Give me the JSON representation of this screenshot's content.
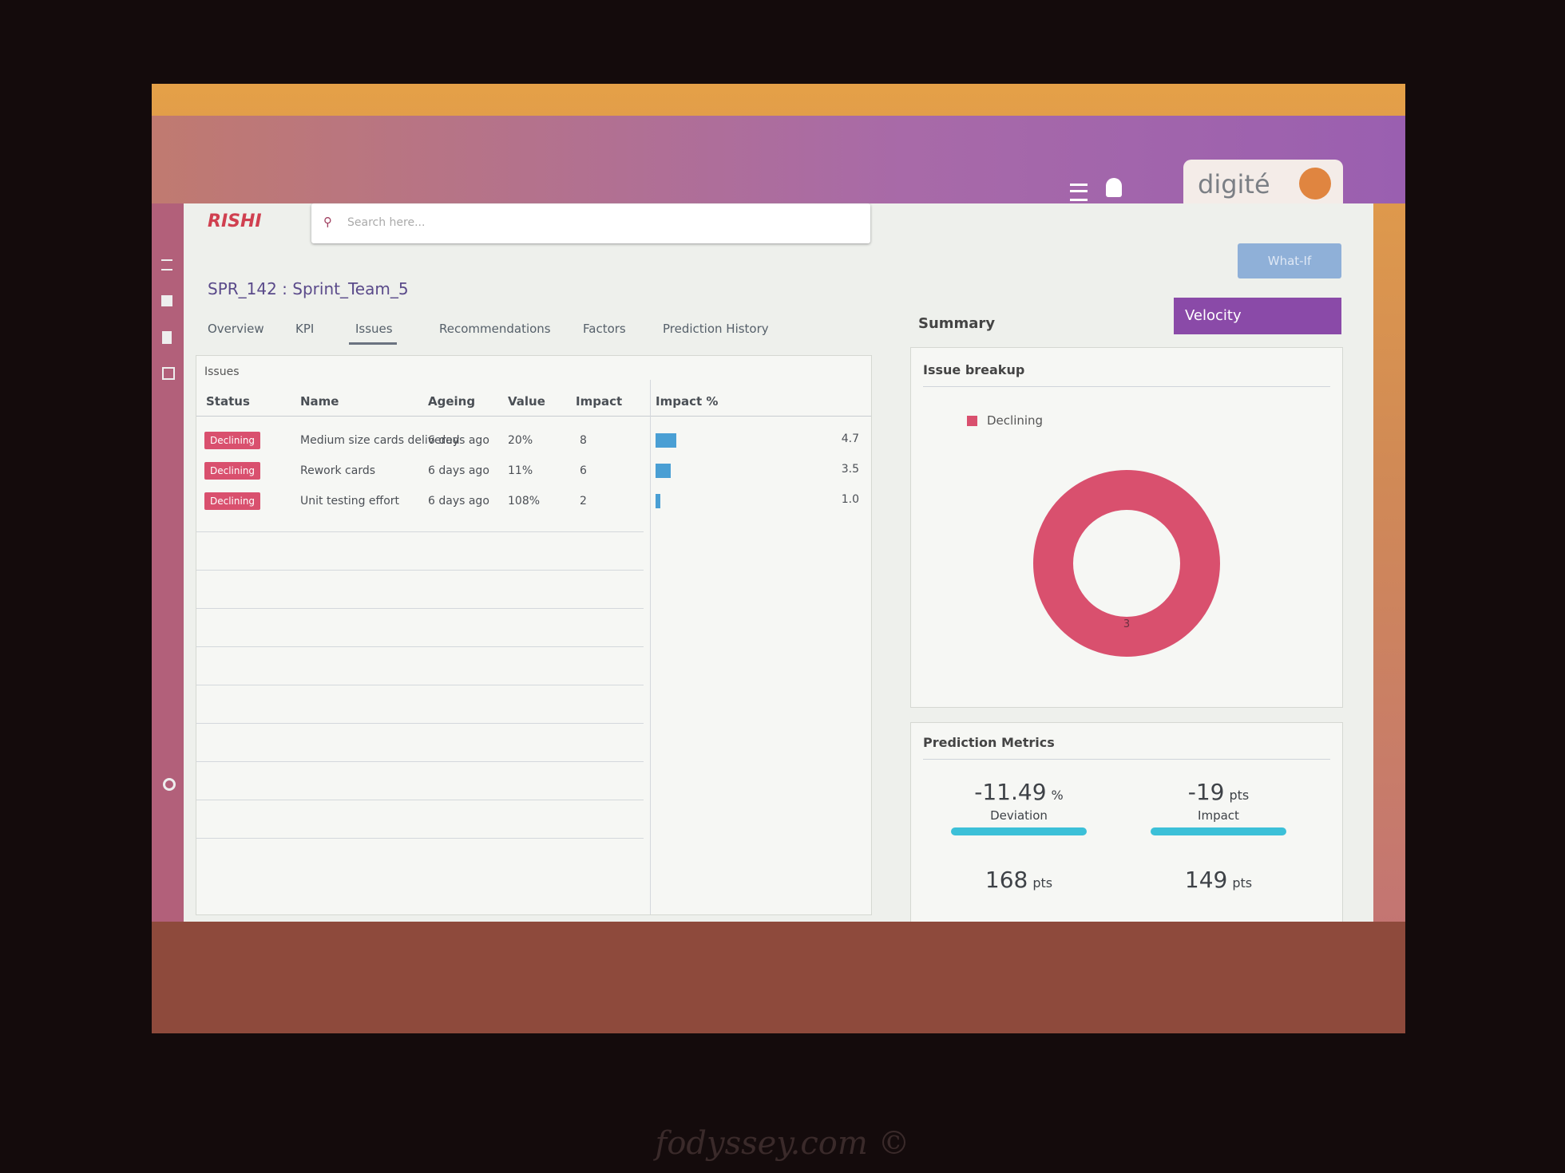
{
  "header": {
    "logo": "RISHI",
    "search_placeholder": "Search here...",
    "brand": "digité",
    "what_if": "What-If",
    "metric_select": "Velocity"
  },
  "breadcrumb": "SPR_142 : Sprint_Team_5",
  "tabs": [
    "Overview",
    "KPI",
    "Issues",
    "Recommendations",
    "Factors",
    "Prediction History"
  ],
  "active_tab": 2,
  "issues": {
    "title": "Issues",
    "columns": [
      "Status",
      "Name",
      "Ageing",
      "Value",
      "Impact",
      "Impact %"
    ],
    "rows": [
      {
        "status": "Declining",
        "name": "Medium size cards delivered",
        "ageing": "6 days ago",
        "value": "20%",
        "impact": 8,
        "impact_pct": {
          "value": 4.7,
          "label": "4.7"
        }
      },
      {
        "status": "Declining",
        "name": "Rework cards",
        "ageing": "6 days ago",
        "value": "11%",
        "impact": 6,
        "impact_pct": {
          "value": 3.5,
          "label": "3.5"
        }
      },
      {
        "status": "Declining",
        "name": "Unit testing effort",
        "ageing": "6 days ago",
        "value": "108%",
        "impact": 2,
        "impact_pct": {
          "value": 1,
          "label": "1.0"
        }
      }
    ]
  },
  "summary": {
    "title": "Summary",
    "issue_breakup": {
      "title": "Issue breakup",
      "legend": "Declining",
      "color": "#d9506e",
      "count": 3
    },
    "prediction_metrics": {
      "title": "Prediction Metrics",
      "items": [
        {
          "value": "-11.49",
          "unit": "%",
          "label": "Deviation"
        },
        {
          "value": "-19",
          "unit": "pts",
          "label": "Impact"
        },
        {
          "value": "168",
          "unit": "pts"
        },
        {
          "value": "149",
          "unit": "pts"
        }
      ]
    }
  },
  "watermark": "fodyssey.com ©"
}
